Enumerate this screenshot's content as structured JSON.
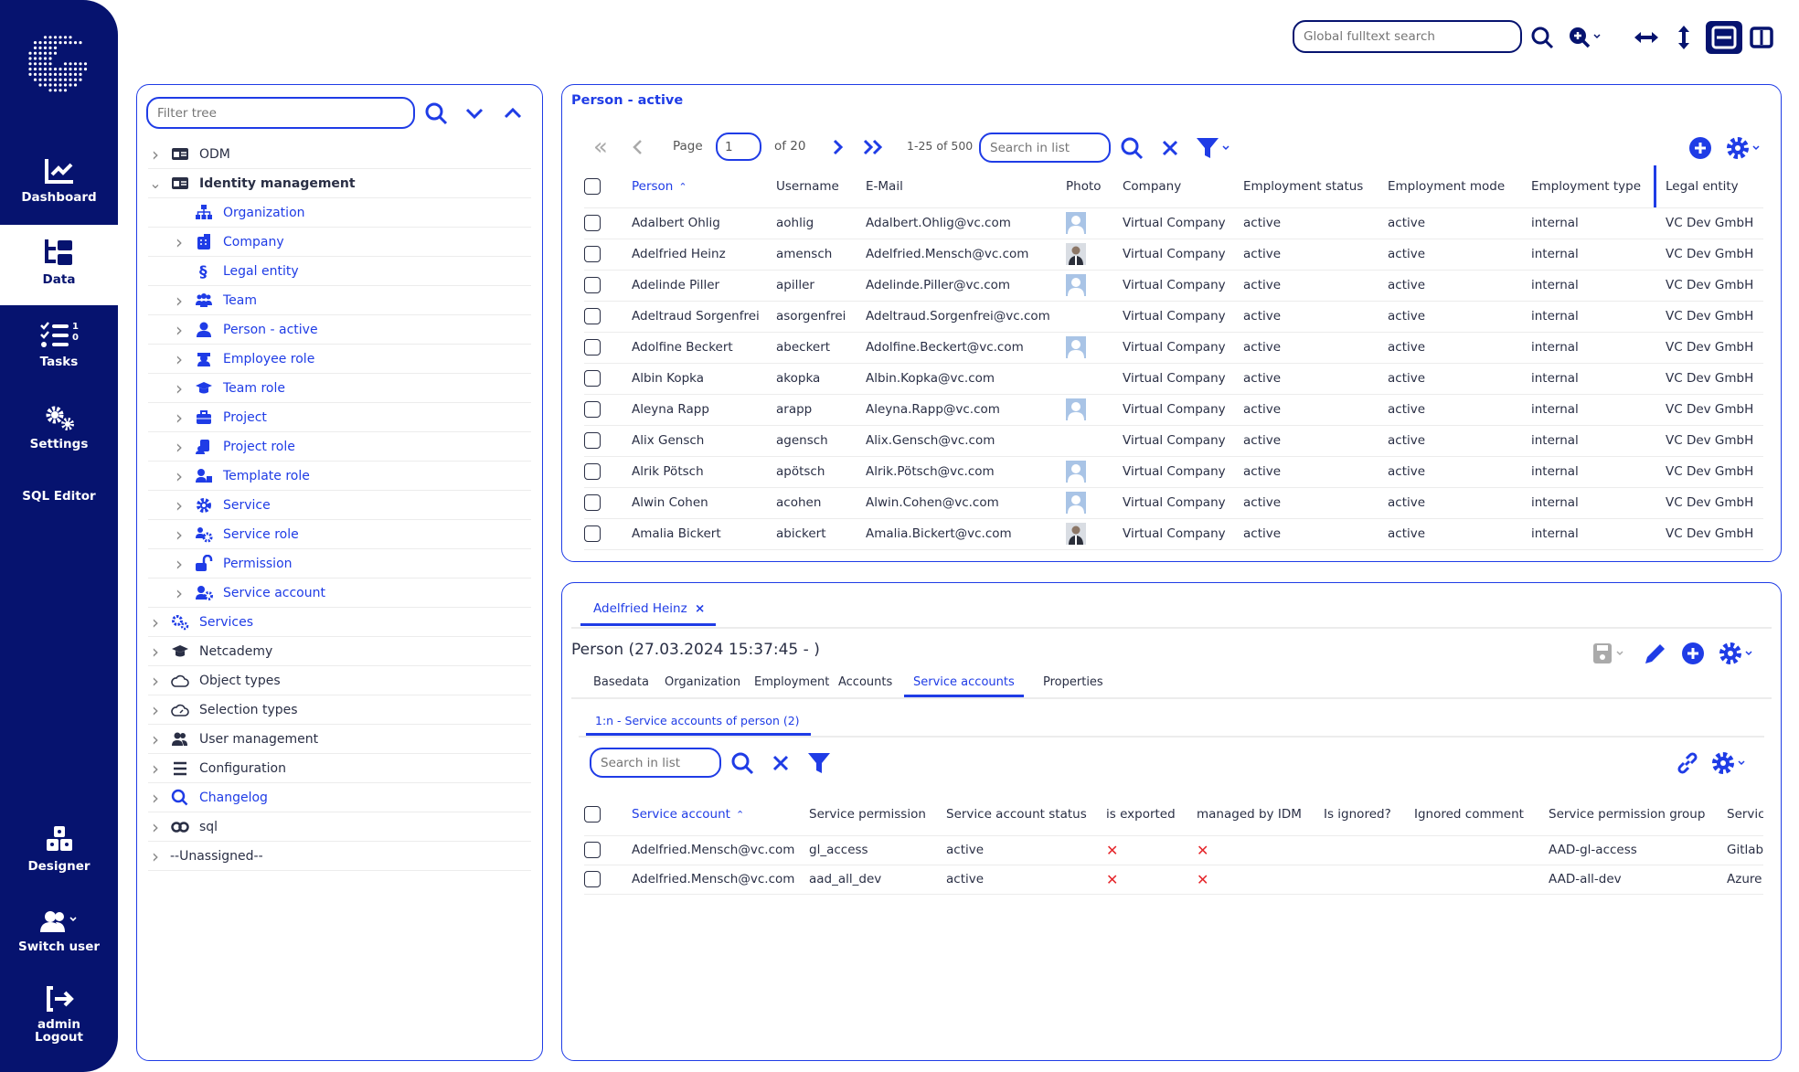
{
  "colors": {
    "sidebar": "#06136f",
    "accent": "#1f3ce6",
    "error": "#e5262b"
  },
  "sidebar": {
    "items": [
      {
        "label": "Dashboard",
        "icon": "chart-line-icon"
      },
      {
        "label": "Data",
        "icon": "data-tree-icon",
        "active": true
      },
      {
        "label": "Tasks",
        "icon": "tasks-icon",
        "badge_top": "1",
        "badge_bottom": "0"
      },
      {
        "label": "Settings",
        "icon": "gears-icon"
      },
      {
        "label": "SQL Editor"
      },
      {
        "label": "Designer",
        "icon": "cubes-icon"
      },
      {
        "label": "Switch user",
        "icon": "users-icon"
      },
      {
        "label_line1": "admin",
        "label_line2": "Logout",
        "icon": "logout-icon"
      }
    ]
  },
  "toolbar": {
    "search_placeholder": "Global fulltext search"
  },
  "tree": {
    "filter_placeholder": "Filter tree",
    "items": [
      {
        "label": "ODM",
        "level": 0,
        "chevron": "right",
        "icon": "id-card-icon",
        "style": "normal"
      },
      {
        "label": "Identity management",
        "level": 0,
        "chevron": "down",
        "icon": "id-card-icon",
        "style": "bold"
      },
      {
        "label": "Organization",
        "level": 1,
        "chevron": "",
        "icon": "sitemap-icon",
        "style": "link"
      },
      {
        "label": "Company",
        "level": 1,
        "chevron": "right",
        "icon": "building-icon",
        "style": "link"
      },
      {
        "label": "Legal entity",
        "level": 1,
        "chevron": "",
        "icon": "section-icon",
        "style": "link"
      },
      {
        "label": "Team",
        "level": 1,
        "chevron": "right",
        "icon": "team-icon",
        "style": "link"
      },
      {
        "label": "Person - active",
        "level": 1,
        "chevron": "right",
        "icon": "person-icon",
        "style": "link"
      },
      {
        "label": "Employee role",
        "level": 1,
        "chevron": "right",
        "icon": "employee-role-icon",
        "style": "link"
      },
      {
        "label": "Team role",
        "level": 1,
        "chevron": "right",
        "icon": "graduation-cap-icon",
        "style": "link"
      },
      {
        "label": "Project",
        "level": 1,
        "chevron": "right",
        "icon": "briefcase-icon",
        "style": "link"
      },
      {
        "label": "Project role",
        "level": 1,
        "chevron": "right",
        "icon": "project-role-icon",
        "style": "link"
      },
      {
        "label": "Template role",
        "level": 1,
        "chevron": "right",
        "icon": "template-role-icon",
        "style": "link"
      },
      {
        "label": "Service",
        "level": 1,
        "chevron": "right",
        "icon": "gear-icon",
        "style": "link"
      },
      {
        "label": "Service role",
        "level": 1,
        "chevron": "right",
        "icon": "service-role-icon",
        "style": "link"
      },
      {
        "label": "Permission",
        "level": 1,
        "chevron": "right",
        "icon": "unlock-icon",
        "style": "link"
      },
      {
        "label": "Service account",
        "level": 1,
        "chevron": "right",
        "icon": "user-gear-icon",
        "style": "link"
      },
      {
        "label": "Services",
        "level": 0,
        "chevron": "right",
        "icon": "gears-icon",
        "style": "link"
      },
      {
        "label": "Netcademy",
        "level": 0,
        "chevron": "right",
        "icon": "graduation-cap-icon",
        "style": "normal"
      },
      {
        "label": "Object types",
        "level": 0,
        "chevron": "right",
        "icon": "cloud-icon",
        "style": "normal"
      },
      {
        "label": "Selection types",
        "level": 0,
        "chevron": "right",
        "icon": "cloud-gauge-icon",
        "style": "normal"
      },
      {
        "label": "User management",
        "level": 0,
        "chevron": "right",
        "icon": "users-icon",
        "style": "normal"
      },
      {
        "label": "Configuration",
        "level": 0,
        "chevron": "right",
        "icon": "menu-icon",
        "style": "normal"
      },
      {
        "label": "Changelog",
        "level": 0,
        "chevron": "right",
        "icon": "search-icon",
        "style": "link"
      },
      {
        "label": "sql",
        "level": 0,
        "chevron": "right",
        "icon": "infinity-icon",
        "style": "normal"
      },
      {
        "label": "--Unassigned--",
        "level": 0,
        "chevron": "right",
        "icon": "",
        "style": "normal"
      }
    ]
  },
  "list": {
    "title": "Person - active",
    "page_label": "Page",
    "page_value": "1",
    "of_pages": "of 20",
    "range": "1-25 of 500",
    "search_placeholder": "Search in list",
    "columns": [
      "Person",
      "Username",
      "E-Mail",
      "Photo",
      "Company",
      "Employment status",
      "Employment mode",
      "Employment type",
      "Legal entity"
    ],
    "sort_column": "Person",
    "sort_dir": "asc",
    "rows": [
      {
        "person": "Adalbert Ohlig",
        "username": "aohlig",
        "email": "Adalbert.Ohlig@vc.com",
        "photo": "placeholder",
        "company": "Virtual Company",
        "status": "active",
        "mode": "active",
        "type": "internal",
        "legal": "VC Dev GmbH"
      },
      {
        "person": "Adelfried Heinz",
        "username": "amensch",
        "email": "Adelfried.Mensch@vc.com",
        "photo": "photo",
        "company": "Virtual Company",
        "status": "active",
        "mode": "active",
        "type": "internal",
        "legal": "VC Dev GmbH"
      },
      {
        "person": "Adelinde Piller",
        "username": "apiller",
        "email": "Adelinde.Piller@vc.com",
        "photo": "placeholder",
        "company": "Virtual Company",
        "status": "active",
        "mode": "active",
        "type": "internal",
        "legal": "VC Dev GmbH"
      },
      {
        "person": "Adeltraud Sorgenfrei",
        "username": "asorgenfrei",
        "email": "Adeltraud.Sorgenfrei@vc.com",
        "photo": "none",
        "company": "Virtual Company",
        "status": "active",
        "mode": "active",
        "type": "internal",
        "legal": "VC Dev GmbH"
      },
      {
        "person": "Adolfine Beckert",
        "username": "abeckert",
        "email": "Adolfine.Beckert@vc.com",
        "photo": "placeholder",
        "company": "Virtual Company",
        "status": "active",
        "mode": "active",
        "type": "internal",
        "legal": "VC Dev GmbH"
      },
      {
        "person": "Albin Kopka",
        "username": "akopka",
        "email": "Albin.Kopka@vc.com",
        "photo": "none",
        "company": "Virtual Company",
        "status": "active",
        "mode": "active",
        "type": "internal",
        "legal": "VC Dev GmbH"
      },
      {
        "person": "Aleyna Rapp",
        "username": "arapp",
        "email": "Aleyna.Rapp@vc.com",
        "photo": "placeholder",
        "company": "Virtual Company",
        "status": "active",
        "mode": "active",
        "type": "internal",
        "legal": "VC Dev GmbH"
      },
      {
        "person": "Alix Gensch",
        "username": "agensch",
        "email": "Alix.Gensch@vc.com",
        "photo": "none",
        "company": "Virtual Company",
        "status": "active",
        "mode": "active",
        "type": "internal",
        "legal": "VC Dev GmbH"
      },
      {
        "person": "Alrik Pötsch",
        "username": "apötsch",
        "email": "Alrik.Pötsch@vc.com",
        "photo": "placeholder",
        "company": "Virtual Company",
        "status": "active",
        "mode": "active",
        "type": "internal",
        "legal": "VC Dev GmbH"
      },
      {
        "person": "Alwin Cohen",
        "username": "acohen",
        "email": "Alwin.Cohen@vc.com",
        "photo": "placeholder",
        "company": "Virtual Company",
        "status": "active",
        "mode": "active",
        "type": "internal",
        "legal": "VC Dev GmbH"
      },
      {
        "person": "Amalia Bickert",
        "username": "abickert",
        "email": "Amalia.Bickert@vc.com",
        "photo": "photo",
        "company": "Virtual Company",
        "status": "active",
        "mode": "active",
        "type": "internal",
        "legal": "VC Dev GmbH"
      }
    ]
  },
  "detail": {
    "open_tab": "Adelfried Heinz",
    "title": "Person (27.03.2024 15:37:45 - )",
    "tabs": [
      "Basedata",
      "Organization",
      "Employment",
      "Accounts",
      "Service accounts",
      "Properties"
    ],
    "active_tab": "Service accounts",
    "subtab": "1:n - Service accounts of person (2)",
    "search_placeholder": "Search in list",
    "columns": [
      "Service account",
      "Service permission",
      "Service account status",
      "is exported",
      "managed by IDM",
      "Is ignored?",
      "Ignored comment",
      "Service permission group",
      "Servic"
    ],
    "rows": [
      {
        "account": "Adelfried.Mensch@vc.com",
        "permission": "gl_access",
        "status": "active",
        "exported": false,
        "managed": false,
        "ignored": "",
        "comment": "",
        "group": "AAD-gl-access",
        "service": "Gitlab"
      },
      {
        "account": "Adelfried.Mensch@vc.com",
        "permission": "aad_all_dev",
        "status": "active",
        "exported": false,
        "managed": false,
        "ignored": "",
        "comment": "",
        "group": "AAD-all-dev",
        "service": "Azure"
      }
    ]
  }
}
